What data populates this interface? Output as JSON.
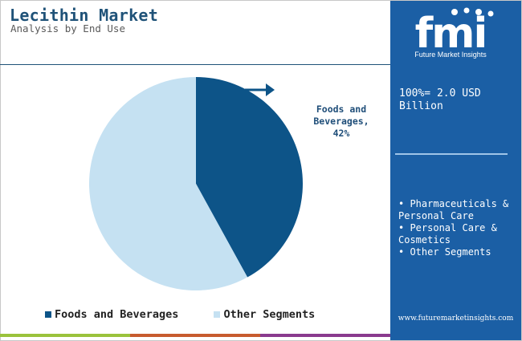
{
  "title": "Lecithin Market",
  "subtitle": "Analysis by End Use",
  "chart_data": {
    "type": "pie",
    "categories": [
      "Foods and Beverages",
      "Other Segments"
    ],
    "values": [
      42,
      58
    ],
    "colors": [
      "#0d5488",
      "#c5e1f2"
    ],
    "annotations": [
      {
        "line1": "Foods and",
        "line2": "Beverages,",
        "line3": "42%"
      }
    ],
    "legend": [
      "Foods and Beverages",
      "Other Segments"
    ],
    "legend_position": "bottom"
  },
  "sidebar": {
    "logo_text": "fmi",
    "logo_subtitle": "Future Market Insights",
    "total_label": "100%= 2.0 USD Billion",
    "segments": [
      "• Pharmaceuticals & Personal Care",
      "• Personal Care & Cosmetics",
      "• Other Segments"
    ],
    "website": "www.futuremarketinsights.com"
  },
  "colors": {
    "panel_bg": "#1b5fa5",
    "title": "#1f5278",
    "bottom_bar": [
      "#9ac23c",
      "#c75b2e",
      "#8a3a8e"
    ]
  }
}
